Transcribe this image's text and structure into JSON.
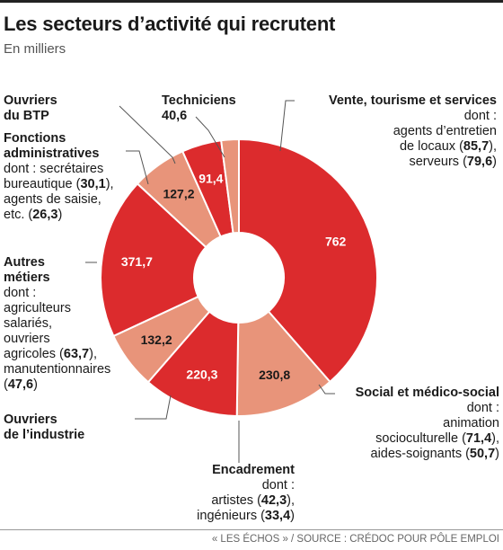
{
  "header": {
    "title": "Les secteurs d’activité qui recrutent",
    "subtitle": "En milliers"
  },
  "footer": {
    "source": "« LES ÉCHOS » / SOURCE : CRÉDOC POUR PÔLE EMPLOI"
  },
  "colors": {
    "dark_red": "#dc2b2d",
    "salmon": "#e8947a",
    "leader": "#555555"
  },
  "chart_data": {
    "type": "pie",
    "variant": "donut",
    "title": "Les secteurs d’activité qui recrutent",
    "subtitle": "En milliers",
    "unit": "milliers",
    "slices": [
      {
        "label": "Vente, tourisme et services",
        "value": 762,
        "value_label": "762",
        "color": "#dc2b2d"
      },
      {
        "label": "Social et médico-social",
        "value": 230.8,
        "value_label": "230,8",
        "color": "#e8947a"
      },
      {
        "label": "Encadrement",
        "value": 220.3,
        "value_label": "220,3",
        "color": "#dc2b2d"
      },
      {
        "label": "Ouvriers de l’industrie",
        "value": 132.2,
        "value_label": "132,2",
        "color": "#e8947a"
      },
      {
        "label": "Autres métiers",
        "value": 371.7,
        "value_label": "371,7",
        "color": "#dc2b2d"
      },
      {
        "label": "Fonctions administratives",
        "value": 127.2,
        "value_label": "127,2",
        "color": "#e8947a"
      },
      {
        "label": "Ouvriers du BTP",
        "value": 91.4,
        "value_label": "91,4",
        "color": "#dc2b2d"
      },
      {
        "label": "Techniciens",
        "value": 40.6,
        "value_label": "40,6",
        "color": "#e8947a"
      }
    ]
  },
  "annotations": {
    "vente": {
      "name": "Vente, tourisme et services",
      "lines": [
        "dont :",
        "agents d’entretien",
        "de locaux ("
      ],
      "l3_num": "85,7",
      "l3_end": "),",
      "l4_pre": "serveurs (",
      "l4_num": "79,6",
      "l4_end": ")"
    },
    "techniciens": {
      "name": "Techniciens",
      "value": "40,6"
    },
    "btp": {
      "name1": "Ouvriers",
      "name2": "du BTP"
    },
    "admin": {
      "name1": "Fonctions",
      "name2": "administratives",
      "l1": "dont : secrétaires",
      "l2_pre": "bureautique (",
      "l2_num": "30,1",
      "l2_end": "),",
      "l3": "agents de saisie,",
      "l4_pre": "etc. (",
      "l4_num": "26,3",
      "l4_end": ")"
    },
    "autres": {
      "name1": "Autres",
      "name2": "métiers",
      "l1": "dont :",
      "l2": "agriculteurs",
      "l3": "salariés,",
      "l4": "ouvriers",
      "l5_pre": "agricoles (",
      "l5_num": "63,7",
      "l5_end": "),",
      "l6": "manutentionnaires",
      "l7_pre": "(",
      "l7_num": "47,6",
      "l7_end": ")"
    },
    "industrie": {
      "name1": "Ouvriers",
      "name2": "de l’industrie"
    },
    "social": {
      "name": "Social et médico-social",
      "l1": "dont :",
      "l2": "animation",
      "l3_pre": "socioculturelle (",
      "l3_num": "71,4",
      "l3_end": "),",
      "l4_pre": "aides-soignants (",
      "l4_num": "50,7",
      "l4_end": ")"
    },
    "encadrement": {
      "name": "Encadrement",
      "l1": "dont :",
      "l2_pre": "artistes (",
      "l2_num": "42,3",
      "l2_end": "),",
      "l3_pre": "ingénieurs (",
      "l3_num": "33,4",
      "l3_end": ")"
    }
  }
}
